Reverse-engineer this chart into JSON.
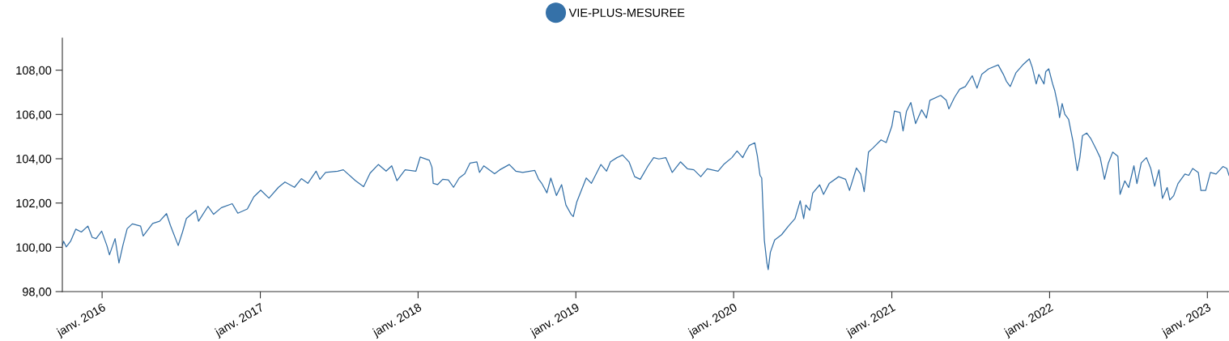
{
  "chart_data": {
    "type": "line",
    "legend": "top",
    "xlim": [
      "2015-10-01",
      "2023-02-20"
    ],
    "xticks": [
      {
        "value": "2016-01-01",
        "label": "janv. 2016"
      },
      {
        "value": "2017-01-01",
        "label": "janv. 2017"
      },
      {
        "value": "2018-01-01",
        "label": "janv. 2018"
      },
      {
        "value": "2019-01-01",
        "label": "janv. 2019"
      },
      {
        "value": "2020-01-01",
        "label": "janv. 2020"
      },
      {
        "value": "2021-01-01",
        "label": "janv. 2021"
      },
      {
        "value": "2022-01-01",
        "label": "janv. 2022"
      },
      {
        "value": "2023-01-01",
        "label": "janv. 2023"
      }
    ],
    "ylim": [
      98,
      109.45
    ],
    "yticks": [
      {
        "value": 98,
        "label": "98,00"
      },
      {
        "value": 100,
        "label": "100,00"
      },
      {
        "value": 102,
        "label": "102,00"
      },
      {
        "value": 104,
        "label": "104,00"
      },
      {
        "value": 106,
        "label": "106,00"
      },
      {
        "value": 108,
        "label": "108,00"
      }
    ],
    "series": [
      {
        "name": "VIE-PLUS-MESUREE",
        "color": "#3571a8",
        "x": [
          "2015-10-01",
          "2015-10-04",
          "2015-10-10",
          "2015-10-20",
          "2015-11-01",
          "2015-11-14",
          "2015-11-29",
          "2015-12-09",
          "2015-12-18",
          "2015-12-31",
          "2016-01-12",
          "2016-01-18",
          "2016-01-31",
          "2016-02-09",
          "2016-02-18",
          "2016-02-28",
          "2016-03-11",
          "2016-03-30",
          "2016-04-05",
          "2016-04-27",
          "2016-05-13",
          "2016-05-29",
          "2016-06-07",
          "2016-06-25",
          "2016-07-05",
          "2016-07-14",
          "2016-08-05",
          "2016-08-11",
          "2016-09-02",
          "2016-09-15",
          "2016-10-03",
          "2016-10-28",
          "2016-11-10",
          "2016-12-02",
          "2016-12-17",
          "2017-01-02",
          "2017-01-21",
          "2017-02-12",
          "2017-02-27",
          "2017-03-21",
          "2017-04-06",
          "2017-04-21",
          "2017-05-10",
          "2017-05-19",
          "2017-06-01",
          "2017-06-29",
          "2017-07-12",
          "2017-08-09",
          "2017-08-28",
          "2017-09-12",
          "2017-10-01",
          "2017-10-19",
          "2017-11-01",
          "2017-11-13",
          "2017-12-02",
          "2017-12-27",
          "2018-01-06",
          "2018-01-27",
          "2018-02-02",
          "2018-02-05",
          "2018-02-15",
          "2018-02-27",
          "2018-03-12",
          "2018-03-24",
          "2018-04-06",
          "2018-04-19",
          "2018-05-01",
          "2018-05-17",
          "2018-05-23",
          "2018-06-02",
          "2018-06-27",
          "2018-07-09",
          "2018-07-31",
          "2018-08-15",
          "2018-08-31",
          "2018-09-28",
          "2018-10-07",
          "2018-10-14",
          "2018-10-26",
          "2018-11-04",
          "2018-11-17",
          "2018-11-29",
          "2018-12-09",
          "2018-12-21",
          "2018-12-26",
          "2019-01-03",
          "2019-01-25",
          "2019-02-06",
          "2019-02-28",
          "2019-03-13",
          "2019-03-22",
          "2019-04-06",
          "2019-04-19",
          "2019-05-04",
          "2019-05-17",
          "2019-05-30",
          "2019-06-17",
          "2019-06-30",
          "2019-07-12",
          "2019-07-28",
          "2019-08-12",
          "2019-08-31",
          "2019-09-16",
          "2019-10-01",
          "2019-10-17",
          "2019-11-01",
          "2019-11-26",
          "2019-12-09",
          "2019-12-28",
          "2020-01-09",
          "2020-01-22",
          "2020-01-28",
          "2020-02-06",
          "2020-02-19",
          "2020-02-25",
          "2020-03-02",
          "2020-03-06",
          "2020-03-12",
          "2020-03-18",
          "2020-03-21",
          "2020-03-26",
          "2020-04-05",
          "2020-04-21",
          "2020-05-06",
          "2020-05-22",
          "2020-06-03",
          "2020-06-11",
          "2020-06-16",
          "2020-06-25",
          "2020-07-02",
          "2020-07-18",
          "2020-07-27",
          "2020-08-09",
          "2020-08-31",
          "2020-09-16",
          "2020-09-25",
          "2020-10-11",
          "2020-10-21",
          "2020-10-29",
          "2020-11-08",
          "2020-11-18",
          "2020-12-07",
          "2020-12-19",
          "2021-01-01",
          "2021-01-07",
          "2021-01-20",
          "2021-01-27",
          "2021-02-04",
          "2021-02-14",
          "2021-02-25",
          "2021-03-11",
          "2021-03-22",
          "2021-03-30",
          "2021-04-24",
          "2021-05-07",
          "2021-05-13",
          "2021-05-26",
          "2021-06-07",
          "2021-06-20",
          "2021-07-06",
          "2021-07-17",
          "2021-07-28",
          "2021-08-13",
          "2021-09-04",
          "2021-09-16",
          "2021-09-23",
          "2021-10-02",
          "2021-10-15",
          "2021-10-31",
          "2021-11-15",
          "2021-11-22",
          "2021-12-01",
          "2021-12-07",
          "2021-12-19",
          "2021-12-23",
          "2021-12-30",
          "2022-01-08",
          "2022-01-13",
          "2022-01-21",
          "2022-01-24",
          "2022-01-30",
          "2022-02-05",
          "2022-02-14",
          "2022-02-24",
          "2022-03-06",
          "2022-03-12",
          "2022-03-18",
          "2022-03-28",
          "2022-04-06",
          "2022-04-19",
          "2022-04-28",
          "2022-05-08",
          "2022-05-17",
          "2022-05-27",
          "2022-06-08",
          "2022-06-13",
          "2022-06-24",
          "2022-07-03",
          "2022-07-15",
          "2022-07-22",
          "2022-08-01",
          "2022-08-13",
          "2022-08-23",
          "2022-09-01",
          "2022-09-11",
          "2022-09-19",
          "2022-09-30",
          "2022-10-06",
          "2022-10-15",
          "2022-10-25",
          "2022-11-10",
          "2022-11-19",
          "2022-11-28",
          "2022-12-11",
          "2022-12-17",
          "2022-12-28",
          "2023-01-08",
          "2023-01-21",
          "2023-02-06",
          "2023-02-15",
          "2023-02-20"
        ],
        "values": [
          100.08,
          100.27,
          100.02,
          100.27,
          100.82,
          100.69,
          100.96,
          100.45,
          100.39,
          100.73,
          100.08,
          99.66,
          100.39,
          99.29,
          100.08,
          100.84,
          101.06,
          100.96,
          100.51,
          101.08,
          101.18,
          101.52,
          100.99,
          100.08,
          100.69,
          101.3,
          101.67,
          101.18,
          101.85,
          101.49,
          101.79,
          101.97,
          101.54,
          101.73,
          102.28,
          102.58,
          102.22,
          102.71,
          102.95,
          102.71,
          103.1,
          102.89,
          103.44,
          103.07,
          103.38,
          103.44,
          103.5,
          103.01,
          102.74,
          103.35,
          103.74,
          103.44,
          103.68,
          103.01,
          103.5,
          103.44,
          104.08,
          103.93,
          103.62,
          102.89,
          102.83,
          103.07,
          103.04,
          102.71,
          103.13,
          103.32,
          103.8,
          103.86,
          103.38,
          103.68,
          103.32,
          103.5,
          103.74,
          103.44,
          103.38,
          103.47,
          103.07,
          102.89,
          102.46,
          103.13,
          102.34,
          102.83,
          101.91,
          101.49,
          101.39,
          102.04,
          103.13,
          102.89,
          103.74,
          103.44,
          103.86,
          104.05,
          104.17,
          103.86,
          103.19,
          103.07,
          103.68,
          104.05,
          103.99,
          104.05,
          103.38,
          103.86,
          103.55,
          103.5,
          103.19,
          103.55,
          103.44,
          103.74,
          104.05,
          104.35,
          104.05,
          104.29,
          104.6,
          104.72,
          104.11,
          103.25,
          103.13,
          100.33,
          99.29,
          98.99,
          99.78,
          100.33,
          100.57,
          100.94,
          101.3,
          102.1,
          101.3,
          101.91,
          101.67,
          102.45,
          102.82,
          102.39,
          102.88,
          103.19,
          103.07,
          102.57,
          103.58,
          103.31,
          102.51,
          104.3,
          104.48,
          104.85,
          104.73,
          105.47,
          106.15,
          106.09,
          105.26,
          106.15,
          106.54,
          105.59,
          106.21,
          105.84,
          106.64,
          106.86,
          106.64,
          106.25,
          106.77,
          107.14,
          107.26,
          107.75,
          107.19,
          107.81,
          108.06,
          108.24,
          107.81,
          107.5,
          107.26,
          107.88,
          108.24,
          108.51,
          108.12,
          107.38,
          107.81,
          107.38,
          107.93,
          108.06,
          107.38,
          107.07,
          106.33,
          105.86,
          106.49,
          106.02,
          105.78,
          104.79,
          103.46,
          104.05,
          105.04,
          105.16,
          104.92,
          104.42,
          104.05,
          103.07,
          103.81,
          104.3,
          104.11,
          102.39,
          103.0,
          102.7,
          103.68,
          102.88,
          103.81,
          104.05,
          103.56,
          102.76,
          103.5,
          102.21,
          102.7,
          102.14,
          102.33,
          102.88,
          103.31,
          103.25,
          103.56,
          103.38,
          102.57,
          102.57,
          103.38,
          103.31,
          103.65,
          103.56,
          103.25
        ]
      }
    ]
  }
}
